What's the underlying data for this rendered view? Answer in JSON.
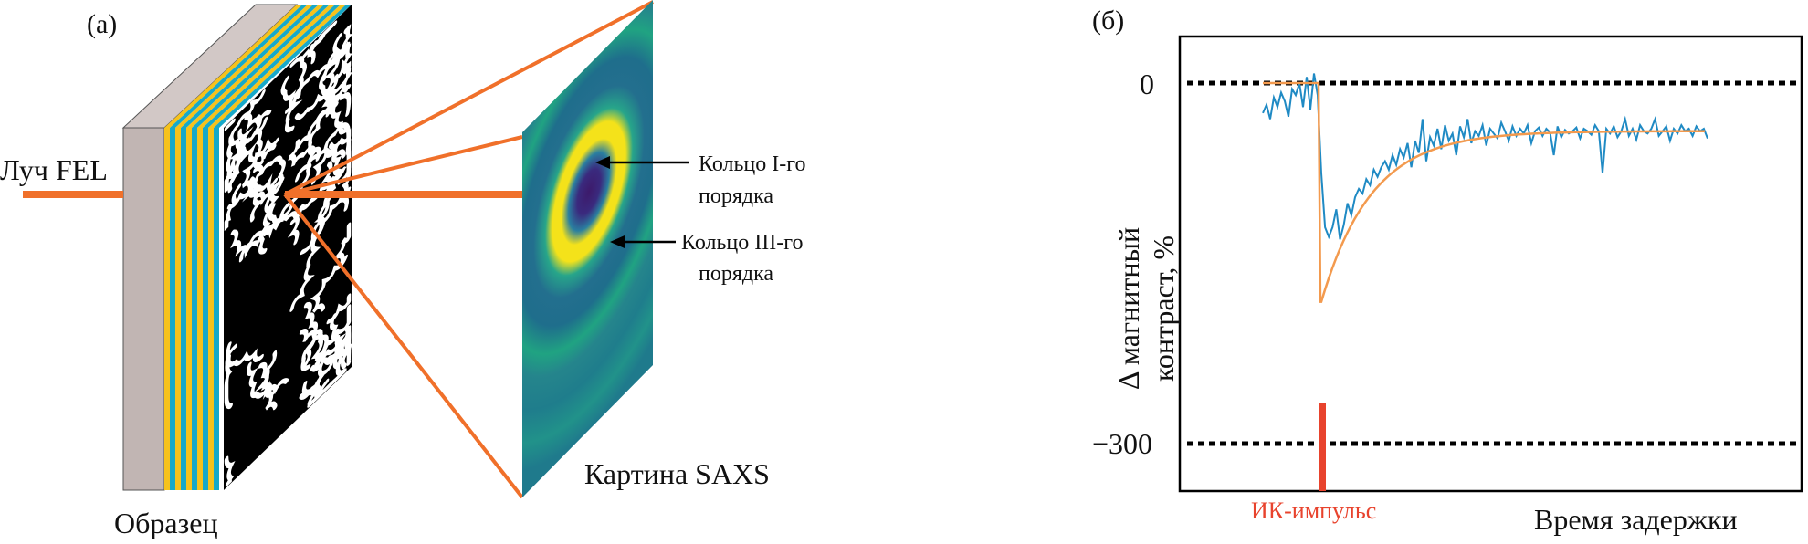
{
  "panel_a": {
    "label": "(a)",
    "beam_label": "Луч FEL",
    "sample_label": "Образец",
    "saxs_label": "Картина SAXS",
    "ring1_label_line1": "Кольцо I-го",
    "ring1_label_line2": "порядка",
    "ring3_label_line1": "Кольцо III-го",
    "ring3_label_line2": "порядка",
    "colors": {
      "beam": "#f0702a",
      "substrate": "#c1b5b3",
      "layer_a": "#f6c21c",
      "layer_b": "#17a9c9"
    }
  },
  "panel_b": {
    "label": "(б)",
    "ylabel_line1": "Δ магнитный",
    "ylabel_line2": "контраст, %",
    "xlabel": "Время задержки",
    "pulse_label": "ИК-импульс",
    "colors": {
      "data": "#1f8ac4",
      "fit": "#f39a4e",
      "pulse": "#e8432d"
    }
  },
  "chart_data": {
    "type": "line",
    "xlabel": "Время задержки",
    "ylabel": "Δ магнитный контраст, %",
    "yticks": [
      "0",
      "−300"
    ],
    "ytick_values": [
      0,
      -300
    ],
    "reference_lines": [
      0,
      -300
    ],
    "grid": false,
    "pulse_marker": "ИК-импульс",
    "series": [
      {
        "kind": "measured",
        "values": [
          -25,
          -18,
          -30,
          -12,
          -20,
          -8,
          -15,
          -28,
          -5,
          -10,
          0,
          -20,
          5,
          -22,
          8,
          -10,
          -75,
          -120,
          -128,
          -120,
          -105,
          -130,
          -118,
          -100,
          -110,
          -95,
          -88,
          -92,
          -80,
          -85,
          -72,
          -78,
          -70,
          -65,
          -72,
          -60,
          -68,
          -55,
          -62,
          -50,
          -70,
          -48,
          -58,
          -30,
          -65,
          -45,
          -52,
          -38,
          -55,
          -35,
          -48,
          -42,
          -60,
          -36,
          -45,
          -30,
          -50,
          -40,
          -44,
          -35,
          -52,
          -38,
          -42,
          -46,
          -33,
          -40,
          -48,
          -36,
          -44,
          -38,
          -42,
          -35,
          -50,
          -40,
          -37,
          -44,
          -38,
          -41,
          -60,
          -36,
          -45,
          -39,
          -42,
          -40,
          -37,
          -46,
          -38,
          -40,
          -43,
          -35,
          -40,
          -75,
          -38,
          -42,
          -36,
          -45,
          -40,
          -30,
          -44,
          -38,
          -47,
          -35,
          -40,
          -42,
          -38,
          -30,
          -44,
          -40,
          -36,
          -48,
          -38,
          -42,
          -35,
          -40,
          -38,
          -44,
          -36,
          -40,
          -38,
          -46
        ]
      },
      {
        "kind": "fit",
        "baseline": 0,
        "minimum": -182,
        "plateau": -40
      }
    ]
  }
}
